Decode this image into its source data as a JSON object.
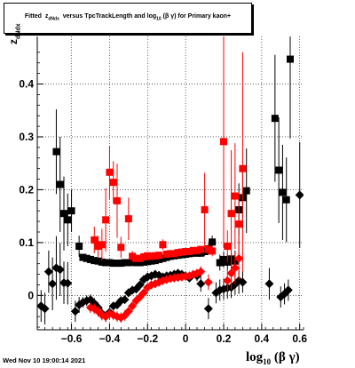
{
  "title_prefix": "Fitted",
  "title_sym": "z",
  "title_sub": "dNdx",
  "title_mid": "versus TpcTrackLength and log",
  "title_sub2": "10",
  "title_suffix": "(β γ) for Primary kaon+",
  "ylabel_main": "z",
  "ylabel_sub": "dNdx",
  "xlabel_main": "log",
  "xlabel_sub": "10",
  "xlabel_suffix": "(β γ)",
  "date_stamp": "Wed Nov 10 19:00:14 2021",
  "colors": {
    "black_series": "#000000",
    "red_series": "#ff0000"
  },
  "chart_data": {
    "type": "scatter",
    "xlim": [
      -0.78,
      0.62
    ],
    "ylim": [
      -0.065,
      0.49
    ],
    "xticks": [
      -0.6,
      -0.4,
      -0.2,
      0,
      0.2,
      0.4,
      0.6
    ],
    "xtick_labels": [
      "−0.6",
      "−0.4",
      "−0.2",
      "0",
      "0.2",
      "0.4",
      "0.6"
    ],
    "yticks": [
      0,
      0.1,
      0.2,
      0.3,
      0.4
    ],
    "ytick_labels": [
      "0",
      "0.1",
      "0.2",
      "0.3",
      "0.4"
    ],
    "grid": true,
    "series": [
      {
        "marker": "square",
        "color": "#000000",
        "points": [
          {
            "x": -0.68,
            "y": 0.272,
            "e": 0.08
          },
          {
            "x": -0.66,
            "y": 0.21,
            "e": 0.09
          },
          {
            "x": -0.64,
            "y": 0.155,
            "e": 0.07
          },
          {
            "x": -0.62,
            "y": 0.143,
            "e": 0.05
          },
          {
            "x": -0.6,
            "y": 0.16,
            "e": 0.04
          },
          {
            "x": -0.56,
            "y": 0.093,
            "e": 0.02
          },
          {
            "x": -0.54,
            "y": 0.072,
            "e": 0.005
          },
          {
            "x": -0.52,
            "y": 0.07,
            "e": 0.005
          },
          {
            "x": -0.5,
            "y": 0.068,
            "e": 0.005
          },
          {
            "x": -0.48,
            "y": 0.066,
            "e": 0.005
          },
          {
            "x": -0.46,
            "y": 0.065,
            "e": 0.005
          },
          {
            "x": -0.44,
            "y": 0.063,
            "e": 0.005
          },
          {
            "x": -0.42,
            "y": 0.062,
            "e": 0.005
          },
          {
            "x": -0.4,
            "y": 0.062,
            "e": 0.005
          },
          {
            "x": -0.38,
            "y": 0.061,
            "e": 0.005
          },
          {
            "x": -0.36,
            "y": 0.061,
            "e": 0.005
          },
          {
            "x": -0.34,
            "y": 0.061,
            "e": 0.005
          },
          {
            "x": -0.32,
            "y": 0.062,
            "e": 0.005
          },
          {
            "x": -0.3,
            "y": 0.062,
            "e": 0.005
          },
          {
            "x": -0.28,
            "y": 0.063,
            "e": 0.005
          },
          {
            "x": -0.26,
            "y": 0.062,
            "e": 0.005
          },
          {
            "x": -0.24,
            "y": 0.062,
            "e": 0.005
          },
          {
            "x": -0.22,
            "y": 0.063,
            "e": 0.005
          },
          {
            "x": -0.2,
            "y": 0.064,
            "e": 0.005
          },
          {
            "x": -0.18,
            "y": 0.065,
            "e": 0.005
          },
          {
            "x": -0.16,
            "y": 0.066,
            "e": 0.005
          },
          {
            "x": -0.14,
            "y": 0.068,
            "e": 0.005
          },
          {
            "x": -0.12,
            "y": 0.07,
            "e": 0.005
          },
          {
            "x": -0.1,
            "y": 0.072,
            "e": 0.005
          },
          {
            "x": -0.08,
            "y": 0.074,
            "e": 0.005
          },
          {
            "x": -0.06,
            "y": 0.075,
            "e": 0.005
          },
          {
            "x": -0.04,
            "y": 0.076,
            "e": 0.005
          },
          {
            "x": -0.02,
            "y": 0.077,
            "e": 0.005
          },
          {
            "x": 0.0,
            "y": 0.078,
            "e": 0.005
          },
          {
            "x": 0.02,
            "y": 0.079,
            "e": 0.005
          },
          {
            "x": 0.04,
            "y": 0.08,
            "e": 0.005
          },
          {
            "x": 0.06,
            "y": 0.08,
            "e": 0.005
          },
          {
            "x": 0.08,
            "y": 0.08,
            "e": 0.005
          },
          {
            "x": 0.1,
            "y": 0.083,
            "e": 0.008
          },
          {
            "x": 0.12,
            "y": 0.088,
            "e": 0.01
          },
          {
            "x": 0.14,
            "y": 0.101,
            "e": 0.012
          },
          {
            "x": 0.18,
            "y": 0.062,
            "e": 0.015
          },
          {
            "x": 0.2,
            "y": 0.068,
            "e": 0.015
          },
          {
            "x": 0.22,
            "y": 0.063,
            "e": 0.015
          },
          {
            "x": 0.24,
            "y": 0.069,
            "e": 0.015
          },
          {
            "x": 0.26,
            "y": 0.065,
            "e": 0.02
          },
          {
            "x": 0.28,
            "y": 0.162,
            "e": 0.05
          },
          {
            "x": 0.3,
            "y": 0.185,
            "e": 0.06
          },
          {
            "x": 0.32,
            "y": 0.198,
            "e": 0.08
          },
          {
            "x": 0.47,
            "y": 0.335,
            "e": 0.12
          },
          {
            "x": 0.49,
            "y": 0.237,
            "e": 0.1
          },
          {
            "x": 0.51,
            "y": 0.195,
            "e": 0.09
          },
          {
            "x": 0.53,
            "y": 0.181,
            "e": 0.08
          },
          {
            "x": 0.55,
            "y": 0.447,
            "e": 0.15
          }
        ]
      },
      {
        "marker": "square",
        "color": "#ff0000",
        "points": [
          {
            "x": -0.48,
            "y": 0.105,
            "e": 0.025
          },
          {
            "x": -0.46,
            "y": 0.093,
            "e": 0.02
          },
          {
            "x": -0.44,
            "y": 0.096,
            "e": 0.03
          },
          {
            "x": -0.42,
            "y": 0.143,
            "e": 0.06
          },
          {
            "x": -0.4,
            "y": 0.233,
            "e": 0.05
          },
          {
            "x": -0.38,
            "y": 0.214,
            "e": 0.04
          },
          {
            "x": -0.36,
            "y": 0.179,
            "e": 0.07
          },
          {
            "x": -0.34,
            "y": 0.091,
            "e": 0.02
          },
          {
            "x": -0.3,
            "y": 0.145,
            "e": 0.04
          },
          {
            "x": -0.28,
            "y": 0.074,
            "e": 0.01
          },
          {
            "x": -0.26,
            "y": 0.07,
            "e": 0.005
          },
          {
            "x": -0.24,
            "y": 0.07,
            "e": 0.005
          },
          {
            "x": -0.22,
            "y": 0.073,
            "e": 0.005
          },
          {
            "x": -0.2,
            "y": 0.075,
            "e": 0.005
          },
          {
            "x": -0.18,
            "y": 0.074,
            "e": 0.005
          },
          {
            "x": -0.16,
            "y": 0.075,
            "e": 0.005
          },
          {
            "x": -0.14,
            "y": 0.076,
            "e": 0.005
          },
          {
            "x": -0.12,
            "y": 0.096,
            "e": 0.01
          },
          {
            "x": -0.1,
            "y": 0.078,
            "e": 0.005
          },
          {
            "x": -0.08,
            "y": 0.079,
            "e": 0.005
          },
          {
            "x": -0.06,
            "y": 0.079,
            "e": 0.005
          },
          {
            "x": -0.04,
            "y": 0.081,
            "e": 0.005
          },
          {
            "x": -0.02,
            "y": 0.082,
            "e": 0.005
          },
          {
            "x": 0.0,
            "y": 0.083,
            "e": 0.005
          },
          {
            "x": 0.02,
            "y": 0.083,
            "e": 0.005
          },
          {
            "x": 0.04,
            "y": 0.085,
            "e": 0.005
          },
          {
            "x": 0.06,
            "y": 0.085,
            "e": 0.005
          },
          {
            "x": 0.08,
            "y": 0.087,
            "e": 0.005
          },
          {
            "x": 0.1,
            "y": 0.162,
            "e": 0.07
          },
          {
            "x": 0.12,
            "y": 0.087,
            "e": 0.01
          },
          {
            "x": 0.14,
            "y": 0.084,
            "e": 0.01
          },
          {
            "x": 0.2,
            "y": 0.291,
            "e": 0.2
          },
          {
            "x": 0.22,
            "y": 0.093,
            "e": 0.03
          },
          {
            "x": 0.24,
            "y": 0.155,
            "e": 0.12
          },
          {
            "x": 0.26,
            "y": 0.188,
            "e": 0.1
          },
          {
            "x": 0.28,
            "y": 0.135,
            "e": 0.06
          },
          {
            "x": 0.3,
            "y": 0.24,
            "e": 0.22
          }
        ]
      },
      {
        "marker": "diamond",
        "color": "#000000",
        "points": [
          {
            "x": -0.76,
            "y": -0.02,
            "e": 0.03
          },
          {
            "x": -0.74,
            "y": -0.025,
            "e": 0.03
          },
          {
            "x": -0.72,
            "y": 0.045,
            "e": 0.04
          },
          {
            "x": -0.7,
            "y": 0.022,
            "e": 0.05
          },
          {
            "x": -0.68,
            "y": 0.052,
            "e": 0.06
          },
          {
            "x": -0.66,
            "y": 0.049,
            "e": 0.05
          },
          {
            "x": -0.64,
            "y": 0.024,
            "e": 0.04
          },
          {
            "x": -0.62,
            "y": 0.023,
            "e": 0.04
          },
          {
            "x": -0.58,
            "y": -0.03,
            "e": 0.02
          },
          {
            "x": -0.56,
            "y": -0.018,
            "e": 0.015
          },
          {
            "x": -0.54,
            "y": -0.013,
            "e": 0.01
          },
          {
            "x": -0.52,
            "y": -0.01,
            "e": 0.01
          },
          {
            "x": -0.5,
            "y": -0.008,
            "e": 0.01
          },
          {
            "x": -0.48,
            "y": -0.015,
            "e": 0.01
          },
          {
            "x": -0.46,
            "y": -0.023,
            "e": 0.01
          },
          {
            "x": -0.44,
            "y": -0.034,
            "e": 0.01
          },
          {
            "x": -0.42,
            "y": -0.04,
            "e": 0.01
          },
          {
            "x": -0.4,
            "y": -0.032,
            "e": 0.01
          },
          {
            "x": -0.38,
            "y": -0.02,
            "e": 0.008
          },
          {
            "x": -0.36,
            "y": -0.018,
            "e": 0.008
          },
          {
            "x": -0.34,
            "y": -0.01,
            "e": 0.008
          },
          {
            "x": -0.32,
            "y": -0.008,
            "e": 0.008
          },
          {
            "x": -0.3,
            "y": 0.005,
            "e": 0.008
          },
          {
            "x": -0.28,
            "y": 0.01,
            "e": 0.008
          },
          {
            "x": -0.26,
            "y": 0.012,
            "e": 0.008
          },
          {
            "x": -0.24,
            "y": 0.02,
            "e": 0.008
          },
          {
            "x": -0.22,
            "y": 0.03,
            "e": 0.008
          },
          {
            "x": -0.2,
            "y": 0.035,
            "e": 0.008
          },
          {
            "x": -0.18,
            "y": 0.037,
            "e": 0.008
          },
          {
            "x": -0.16,
            "y": 0.04,
            "e": 0.008
          },
          {
            "x": -0.14,
            "y": 0.038,
            "e": 0.008
          },
          {
            "x": -0.12,
            "y": 0.035,
            "e": 0.008
          },
          {
            "x": -0.1,
            "y": 0.037,
            "e": 0.008
          },
          {
            "x": -0.08,
            "y": 0.038,
            "e": 0.008
          },
          {
            "x": -0.06,
            "y": 0.04,
            "e": 0.008
          },
          {
            "x": -0.04,
            "y": 0.042,
            "e": 0.008
          },
          {
            "x": -0.02,
            "y": 0.04,
            "e": 0.008
          },
          {
            "x": 0.0,
            "y": 0.037,
            "e": 0.008
          },
          {
            "x": 0.02,
            "y": 0.033,
            "e": 0.008
          },
          {
            "x": 0.06,
            "y": 0.037,
            "e": 0.01
          },
          {
            "x": 0.08,
            "y": 0.022,
            "e": 0.015
          },
          {
            "x": 0.12,
            "y": -0.025,
            "e": 0.02
          },
          {
            "x": 0.16,
            "y": 0.005,
            "e": 0.02
          },
          {
            "x": 0.18,
            "y": 0.01,
            "e": 0.02
          },
          {
            "x": 0.2,
            "y": 0.012,
            "e": 0.02
          },
          {
            "x": 0.22,
            "y": 0.014,
            "e": 0.02
          },
          {
            "x": 0.24,
            "y": 0.015,
            "e": 0.02
          },
          {
            "x": 0.26,
            "y": 0.021,
            "e": 0.02
          },
          {
            "x": 0.28,
            "y": 0.028,
            "e": 0.025
          },
          {
            "x": 0.3,
            "y": 0.025,
            "e": 0.02
          },
          {
            "x": 0.44,
            "y": 0.022,
            "e": 0.03
          },
          {
            "x": 0.5,
            "y": -0.003,
            "e": 0.02
          },
          {
            "x": 0.52,
            "y": 0.003,
            "e": 0.02
          },
          {
            "x": 0.54,
            "y": 0.01,
            "e": 0.02
          },
          {
            "x": 0.6,
            "y": 0.19,
            "e": 0.1
          }
        ]
      },
      {
        "marker": "diamond",
        "color": "#ff0000",
        "points": [
          {
            "x": -0.5,
            "y": -0.023,
            "e": 0.01
          },
          {
            "x": -0.48,
            "y": -0.025,
            "e": 0.01
          },
          {
            "x": -0.46,
            "y": -0.03,
            "e": 0.01
          },
          {
            "x": -0.44,
            "y": -0.037,
            "e": 0.01
          },
          {
            "x": -0.42,
            "y": -0.04,
            "e": 0.01
          },
          {
            "x": -0.4,
            "y": -0.035,
            "e": 0.01
          },
          {
            "x": -0.38,
            "y": -0.037,
            "e": 0.01
          },
          {
            "x": -0.36,
            "y": -0.04,
            "e": 0.01
          },
          {
            "x": -0.34,
            "y": -0.042,
            "e": 0.01
          },
          {
            "x": -0.32,
            "y": -0.038,
            "e": 0.01
          },
          {
            "x": -0.3,
            "y": -0.03,
            "e": 0.008
          },
          {
            "x": -0.28,
            "y": -0.02,
            "e": 0.008
          },
          {
            "x": -0.26,
            "y": -0.01,
            "e": 0.008
          },
          {
            "x": -0.24,
            "y": -0.003,
            "e": 0.008
          },
          {
            "x": -0.22,
            "y": 0.005,
            "e": 0.008
          },
          {
            "x": -0.2,
            "y": 0.015,
            "e": 0.008
          },
          {
            "x": -0.18,
            "y": 0.02,
            "e": 0.008
          },
          {
            "x": -0.16,
            "y": 0.022,
            "e": 0.008
          },
          {
            "x": -0.14,
            "y": 0.025,
            "e": 0.008
          },
          {
            "x": -0.12,
            "y": 0.028,
            "e": 0.008
          },
          {
            "x": -0.1,
            "y": 0.03,
            "e": 0.008
          },
          {
            "x": -0.08,
            "y": 0.032,
            "e": 0.008
          },
          {
            "x": -0.06,
            "y": 0.033,
            "e": 0.008
          },
          {
            "x": -0.04,
            "y": 0.034,
            "e": 0.008
          },
          {
            "x": -0.02,
            "y": 0.035,
            "e": 0.008
          },
          {
            "x": 0.0,
            "y": 0.036,
            "e": 0.008
          },
          {
            "x": 0.02,
            "y": 0.037,
            "e": 0.008
          },
          {
            "x": 0.04,
            "y": 0.04,
            "e": 0.008
          },
          {
            "x": 0.06,
            "y": 0.042,
            "e": 0.008
          },
          {
            "x": 0.08,
            "y": 0.045,
            "e": 0.01
          },
          {
            "x": 0.12,
            "y": 0.025,
            "e": 0.015
          },
          {
            "x": 0.22,
            "y": 0.028,
            "e": 0.02
          },
          {
            "x": 0.24,
            "y": 0.042,
            "e": 0.03
          },
          {
            "x": 0.26,
            "y": 0.052,
            "e": 0.03
          },
          {
            "x": 0.28,
            "y": 0.07,
            "e": 0.04
          }
        ]
      }
    ]
  }
}
